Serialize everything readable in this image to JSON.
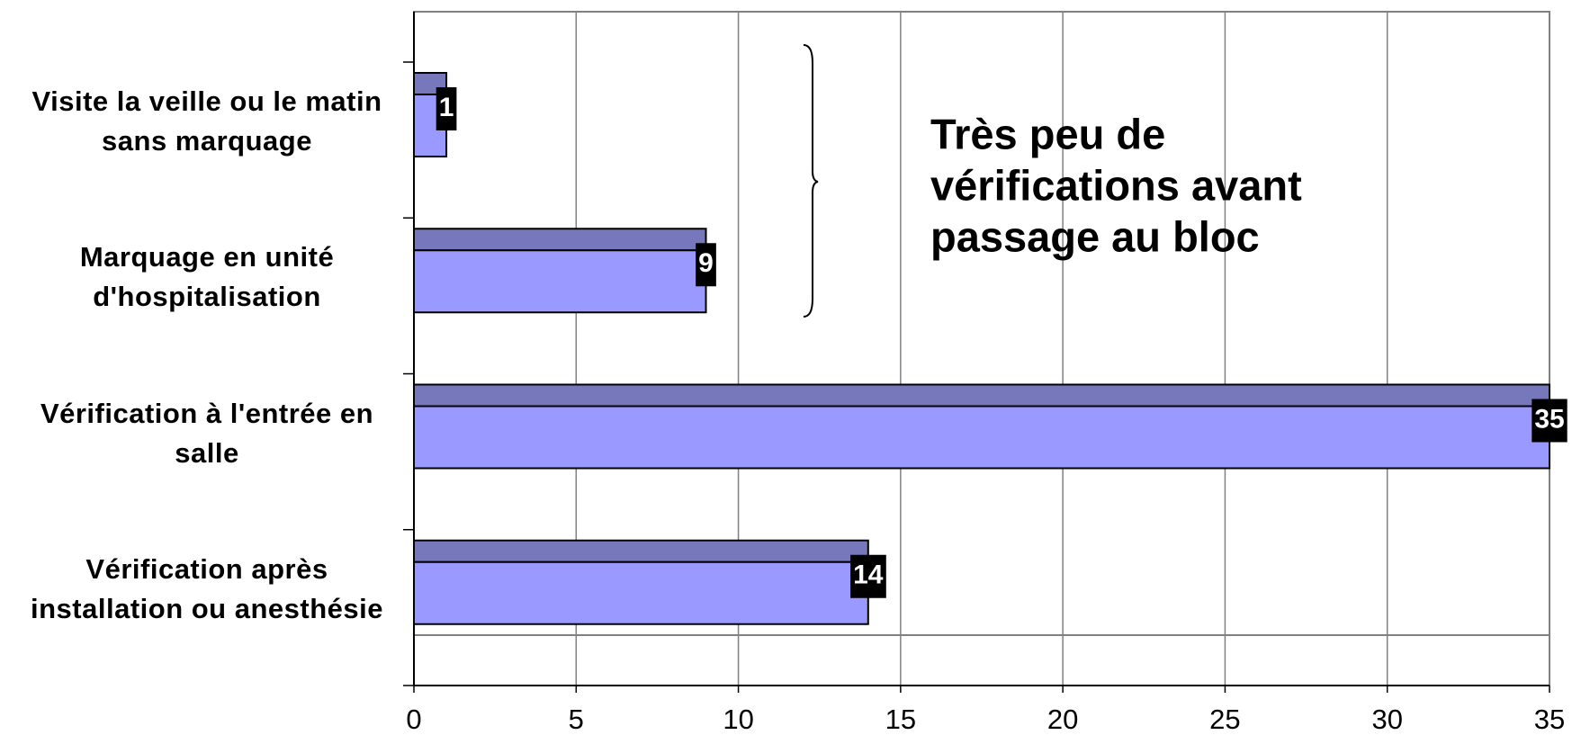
{
  "chart_data": {
    "type": "bar",
    "orientation": "horizontal",
    "categories": [
      "Visite la veille ou le matin sans marquage",
      "Marquage en unité d'hospitalisation",
      "Vérification à l'entrée en salle",
      "Vérification après installation ou anesthésie"
    ],
    "values": [
      1,
      9,
      35,
      14
    ],
    "color": "#9999ff",
    "xlim": [
      0,
      35
    ],
    "xticks": [
      0,
      5,
      10,
      15,
      20,
      25,
      30,
      35
    ],
    "grid": true,
    "annotation": [
      "Très peu de",
      "vérifications avant",
      "passage au bloc"
    ]
  }
}
